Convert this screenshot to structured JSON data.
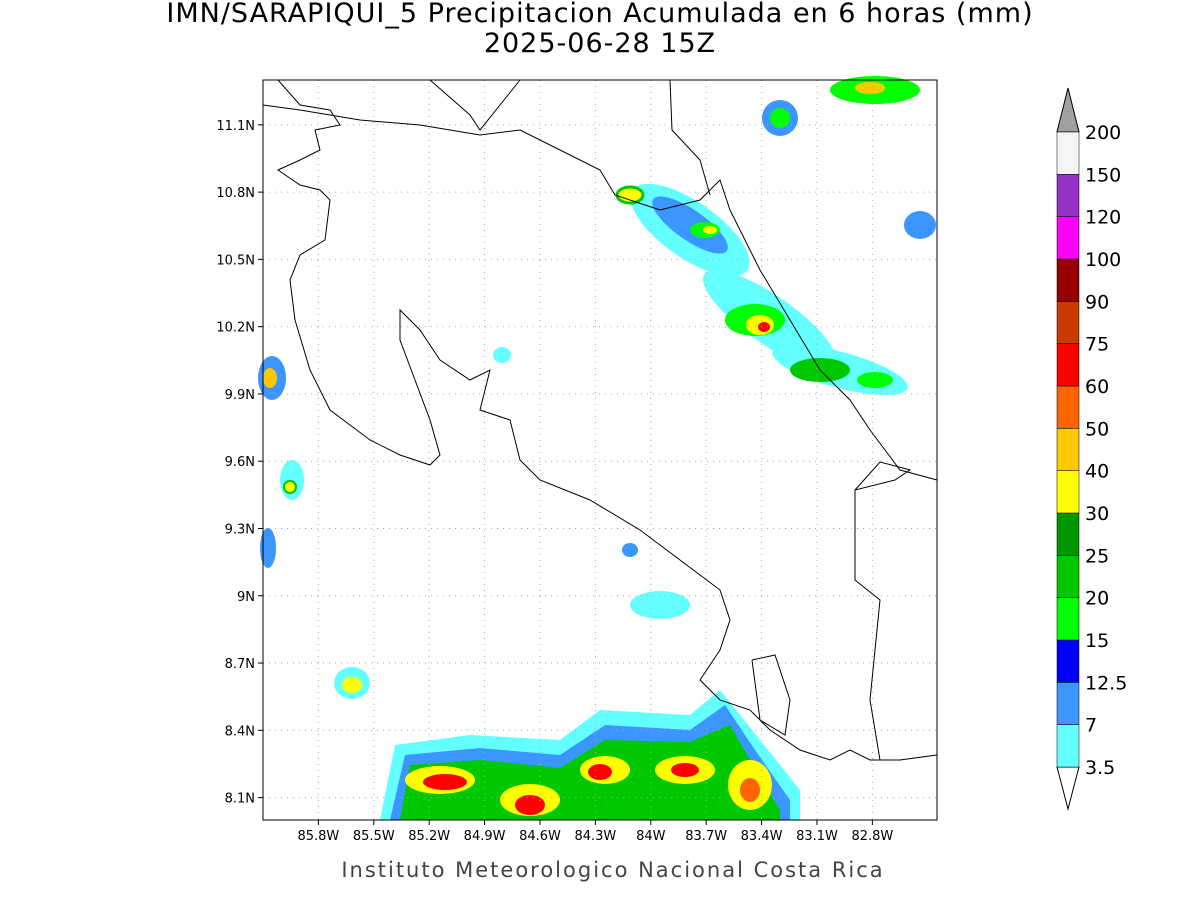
{
  "header": {
    "title": "IMN/SARAPIQUI_5 Precipitacion Acumulada en 6 horas (mm)",
    "subtitle": "2025-06-28 15Z"
  },
  "map": {
    "xlim": [
      -86.1,
      -82.45
    ],
    "ylim": [
      8.0,
      11.3
    ],
    "grid": true,
    "xticks": [
      {
        "value": -85.8,
        "label": "85.8W"
      },
      {
        "value": -85.5,
        "label": "85.5W"
      },
      {
        "value": -85.2,
        "label": "85.2W"
      },
      {
        "value": -84.9,
        "label": "84.9W"
      },
      {
        "value": -84.6,
        "label": "84.6W"
      },
      {
        "value": -84.3,
        "label": "84.3W"
      },
      {
        "value": -84.0,
        "label": "84W"
      },
      {
        "value": -83.7,
        "label": "83.7W"
      },
      {
        "value": -83.4,
        "label": "83.4W"
      },
      {
        "value": -83.1,
        "label": "83.1W"
      },
      {
        "value": -82.8,
        "label": "82.8W"
      }
    ],
    "yticks": [
      {
        "value": 8.1,
        "label": "8.1N"
      },
      {
        "value": 8.4,
        "label": "8.4N"
      },
      {
        "value": 8.7,
        "label": "8.7N"
      },
      {
        "value": 9.0,
        "label": "9N"
      },
      {
        "value": 9.3,
        "label": "9.3N"
      },
      {
        "value": 9.6,
        "label": "9.6N"
      },
      {
        "value": 9.9,
        "label": "9.9N"
      },
      {
        "value": 10.2,
        "label": "10.2N"
      },
      {
        "value": 10.5,
        "label": "10.5N"
      },
      {
        "value": 10.8,
        "label": "10.8N"
      },
      {
        "value": 11.1,
        "label": "11.1N"
      }
    ]
  },
  "colorbar": {
    "levels": [
      3.5,
      7,
      12.5,
      15,
      20,
      25,
      30,
      40,
      50,
      60,
      75,
      90,
      100,
      120,
      150,
      200
    ],
    "colors": [
      "#64ffff",
      "#3c96ff",
      "#0000ff",
      "#00ff00",
      "#00c800",
      "#009600",
      "#ffff00",
      "#ffc800",
      "#ff6400",
      "#ff0000",
      "#c83c00",
      "#960000",
      "#ff00ff",
      "#9632c8",
      "#f5f5f5"
    ],
    "under_color": "#ffffff",
    "over_color": "#a0a0a0"
  },
  "footer": "Instituto Meteorologico Nacional Costa Rica"
}
